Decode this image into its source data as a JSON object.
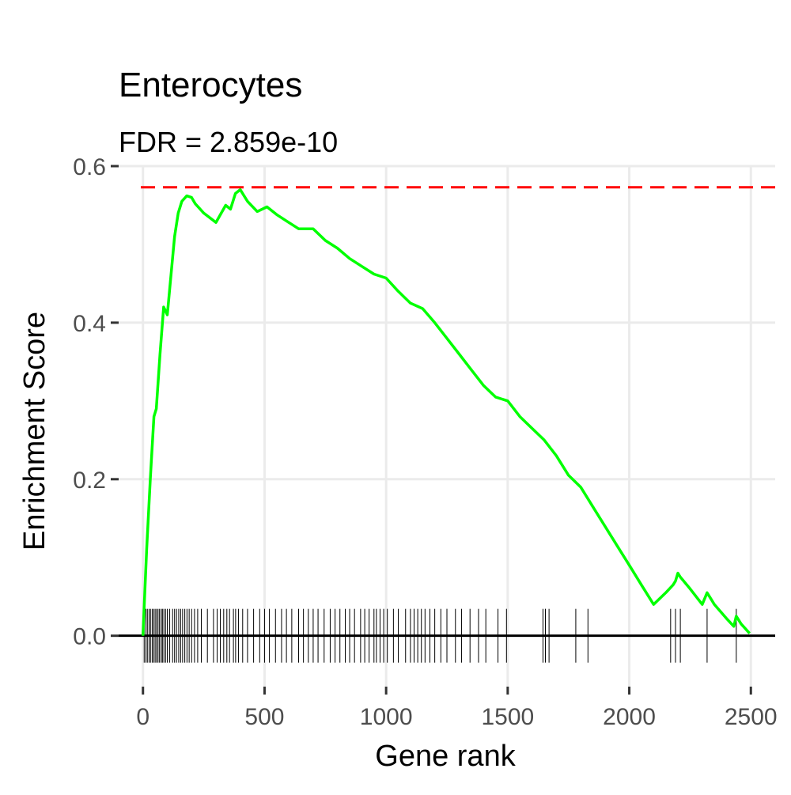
{
  "chart_data": {
    "type": "line",
    "title": "Enterocytes",
    "subtitle": "FDR = 2.859e-10",
    "xlabel": "Gene rank",
    "ylabel": "Enrichment Score",
    "xlim": [
      -100,
      2600
    ],
    "ylim": [
      -0.065,
      0.6
    ],
    "x_ticks": [
      0,
      500,
      1000,
      1500,
      2000,
      2500
    ],
    "x_tick_labels": [
      "0",
      "500",
      "1000",
      "1500",
      "2000",
      "2500"
    ],
    "y_ticks": [
      0.0,
      0.2,
      0.4,
      0.6
    ],
    "y_tick_labels": [
      "0.0",
      "0.2",
      "0.4",
      "0.6"
    ],
    "grid": true,
    "max_es": 0.573,
    "colors": {
      "curve": "#00ff00",
      "max_line": "#ff0000",
      "baseline": "#000000",
      "hits": "#000000"
    },
    "series": [
      {
        "x": [
          0,
          15,
          30,
          45,
          55,
          70,
          85,
          100,
          115,
          130,
          145,
          160,
          180,
          200,
          215,
          250,
          300,
          340,
          360,
          380,
          400,
          430,
          470,
          510,
          550,
          590,
          640,
          700,
          750,
          800,
          850,
          900,
          950,
          1000,
          1050,
          1100,
          1150,
          1200,
          1250,
          1300,
          1350,
          1400,
          1450,
          1500,
          1550,
          1600,
          1650,
          1700,
          1750,
          1800,
          1850,
          1900,
          1950,
          2000,
          2050,
          2100,
          2150,
          2180,
          2190,
          2200,
          2210,
          2250,
          2300,
          2320,
          2330,
          2350,
          2400,
          2430,
          2440,
          2460,
          2495
        ],
        "values": [
          0.0,
          0.11,
          0.2,
          0.28,
          0.29,
          0.36,
          0.42,
          0.41,
          0.46,
          0.51,
          0.54,
          0.555,
          0.562,
          0.56,
          0.552,
          0.54,
          0.528,
          0.55,
          0.545,
          0.565,
          0.57,
          0.555,
          0.542,
          0.548,
          0.538,
          0.53,
          0.52,
          0.52,
          0.505,
          0.495,
          0.482,
          0.472,
          0.462,
          0.457,
          0.44,
          0.425,
          0.418,
          0.4,
          0.38,
          0.36,
          0.34,
          0.32,
          0.305,
          0.3,
          0.28,
          0.265,
          0.25,
          0.23,
          0.205,
          0.19,
          0.165,
          0.14,
          0.115,
          0.09,
          0.065,
          0.04,
          0.055,
          0.065,
          0.07,
          0.08,
          0.075,
          0.06,
          0.04,
          0.055,
          0.05,
          0.04,
          0.022,
          0.012,
          0.025,
          0.015,
          0.003
        ]
      }
    ],
    "hits": [
      5,
      12,
      18,
      25,
      31,
      38,
      44,
      50,
      56,
      62,
      68,
      75,
      80,
      86,
      93,
      100,
      110,
      122,
      130,
      138,
      147,
      155,
      163,
      172,
      181,
      190,
      200,
      212,
      225,
      240,
      265,
      290,
      305,
      318,
      332,
      345,
      356,
      372,
      381,
      393,
      410,
      430,
      455,
      480,
      500,
      520,
      545,
      570,
      590,
      612,
      640,
      660,
      680,
      700,
      720,
      745,
      770,
      790,
      810,
      832,
      850,
      870,
      895,
      912,
      930,
      950,
      960,
      975,
      990,
      1005,
      1030,
      1050,
      1080,
      1100,
      1115,
      1130,
      1145,
      1160,
      1180,
      1200,
      1225,
      1250,
      1285,
      1310,
      1345,
      1380,
      1410,
      1460,
      1495,
      1645,
      1655,
      1670,
      1780,
      1830,
      2170,
      2190,
      2210,
      2320,
      2440
    ]
  }
}
